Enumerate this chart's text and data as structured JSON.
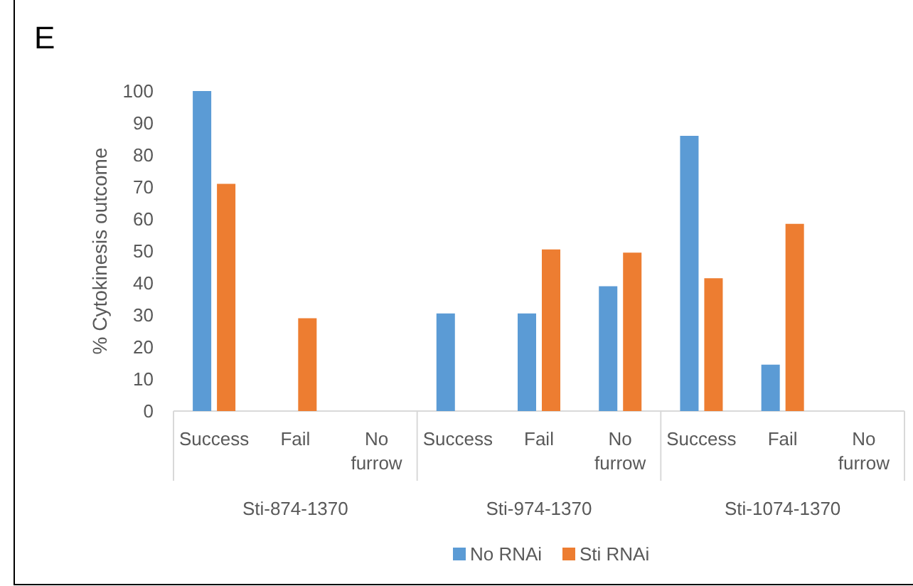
{
  "chart_data": {
    "type": "bar",
    "ylabel": "% Cytokinesis outcome",
    "annotations": [
      "E",
      "Sti-874-1370",
      "Sti-974-1370",
      "Sti-1074-1370"
    ],
    "categories": [
      "Success",
      "Fail",
      "No furrow",
      "Success",
      "Fail",
      "No furrow",
      "Success",
      "Fail",
      "No furrow"
    ],
    "series": [
      {
        "name": "No RNAi",
        "color": "#5b9bd5",
        "values": [
          100,
          0,
          0,
          30.5,
          30.5,
          39,
          86,
          14.5,
          0
        ]
      },
      {
        "name": "Sti RNAi",
        "color": "#ed7d31",
        "values": [
          71,
          29,
          0,
          0,
          50.5,
          49.5,
          41.5,
          58.5,
          0
        ]
      }
    ],
    "ylim": [
      0,
      100
    ],
    "yticks": [
      0,
      10,
      20,
      30,
      40,
      50,
      60,
      70,
      80,
      90,
      100
    ],
    "grid": false,
    "legend": "bottom"
  }
}
